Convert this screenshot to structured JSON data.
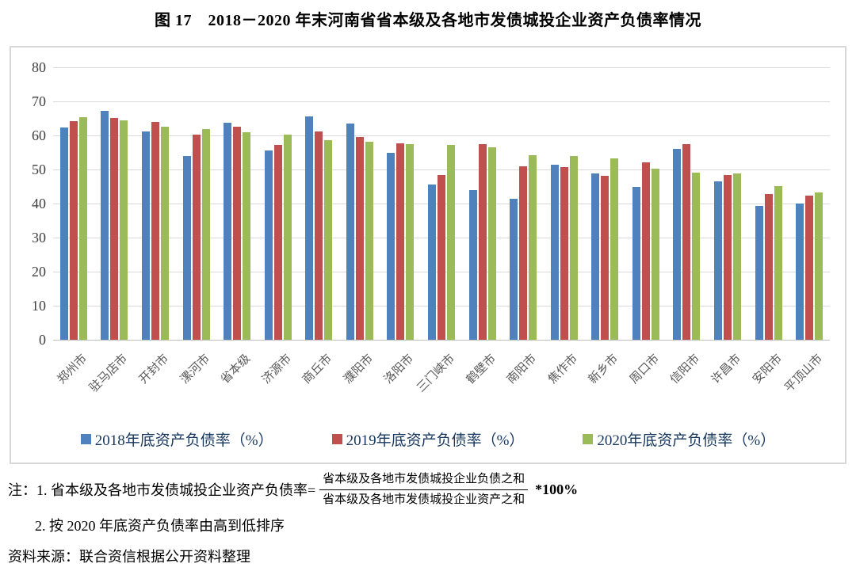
{
  "title": "图 17　2018－2020 年末河南省省本级及各地市发债城投企业资产负债率情况",
  "colors": {
    "series_2018": "#4f81bd",
    "series_2019": "#c0504d",
    "series_2020": "#9bbb59",
    "gridline": "#d9d9d9",
    "axis_line": "#bfbfbf",
    "legend_text": "#17375e",
    "tick_text": "#595959"
  },
  "chart_data": {
    "type": "bar",
    "title": "图 17　2018－2020 年末河南省省本级及各地市发债城投企业资产负债率情况",
    "categories": [
      "郑州市",
      "驻马店市",
      "开封市",
      "漯河市",
      "省本级",
      "济源市",
      "商丘市",
      "濮阳市",
      "洛阳市",
      "三门峡市",
      "鹤壁市",
      "南阳市",
      "焦作市",
      "新乡市",
      "周口市",
      "信阳市",
      "许昌市",
      "安阳市",
      "平顶山市"
    ],
    "series": [
      {
        "name": "2018年底资产负债率（%）",
        "color": "#4f81bd",
        "values": [
          62.3,
          67.3,
          61.2,
          54.0,
          63.7,
          55.7,
          65.7,
          63.4,
          54.8,
          45.7,
          43.9,
          41.5,
          51.3,
          48.8,
          45.0,
          56.1,
          46.4,
          39.4,
          39.9
        ]
      },
      {
        "name": "2019年底资产负债率（%）",
        "color": "#c0504d",
        "values": [
          64.1,
          65.1,
          63.9,
          60.3,
          62.5,
          57.1,
          61.2,
          59.6,
          57.6,
          48.3,
          57.5,
          51.0,
          50.6,
          48.1,
          52.2,
          57.5,
          48.4,
          42.7,
          42.4
        ]
      },
      {
        "name": "2020年底资产负债率（%）",
        "color": "#9bbb59",
        "values": [
          65.4,
          64.5,
          62.5,
          61.9,
          60.9,
          60.2,
          58.5,
          58.1,
          57.5,
          57.3,
          56.4,
          54.2,
          54.0,
          53.3,
          50.3,
          49.1,
          48.9,
          45.1,
          43.2
        ]
      }
    ],
    "xlabel": "",
    "ylabel": "",
    "ylim": [
      0,
      80
    ],
    "ytick_step": 10,
    "grid": true,
    "legend_position": "bottom"
  },
  "notes": {
    "line1_prefix": "注：1. 省本级及各地市发债城投企业资产负债率=",
    "fraction_numerator": "省本级及各地市发债城投企业负债之和",
    "fraction_denominator": "省本级及各地市发债城投企业资产之和",
    "line1_suffix": "*100%",
    "line2": "2. 按 2020 年底资产负债率由高到低排序",
    "source": "资料来源：联合资信根据公开资料整理"
  }
}
